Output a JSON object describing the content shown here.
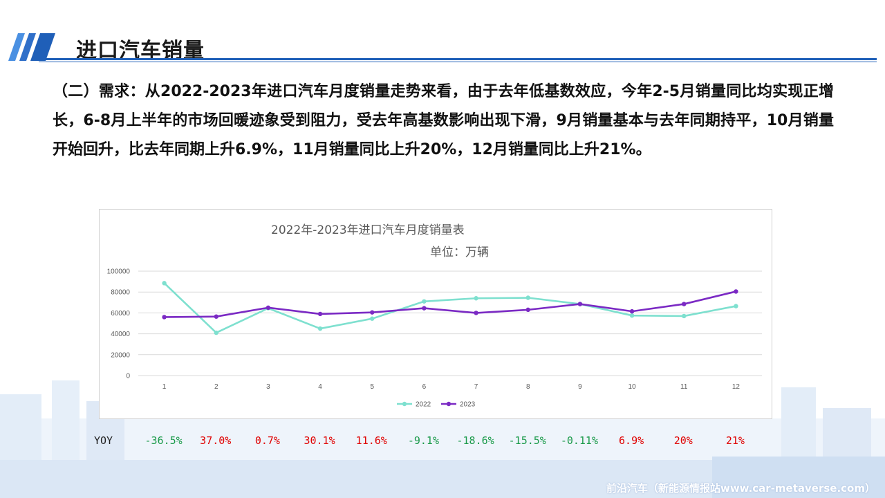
{
  "header": {
    "title": "进口汽车销量"
  },
  "paragraph": "（二）需求：从2022-2023年进口汽车月度销量走势来看，由于去年低基数效应，今年2-5月销量同比均实现正增长，6-8月上半年的市场回暖迹象受到阻力，受去年高基数影响出现下滑，9月销量基本与去年同期持平，10月销量开始回升，比去年同期上升6.9%，11月销量同比上升20%，12月销量同比上升21%。",
  "colors": {
    "series_2022": "#7ee0cf",
    "series_2023": "#7b2ac4",
    "positive": "#e00000",
    "negative": "#1a9a4a",
    "accent": "#1f5fb8"
  },
  "chart_data": {
    "type": "line",
    "title": "2022年-2023年进口汽车月度销量表",
    "subtitle": "单位：万辆",
    "x": [
      "1",
      "2",
      "3",
      "4",
      "5",
      "6",
      "7",
      "8",
      "9",
      "10",
      "11",
      "12"
    ],
    "ylim": [
      0,
      100000
    ],
    "yticks": [
      "0",
      "20000",
      "40000",
      "60000",
      "80000",
      "100000"
    ],
    "grid": true,
    "legend": "bottom",
    "series": [
      {
        "name": "2022",
        "values": [
          88500,
          41000,
          64500,
          45000,
          54500,
          71000,
          74000,
          74500,
          68500,
          57500,
          57000,
          66500
        ]
      },
      {
        "name": "2023",
        "values": [
          56000,
          56500,
          65000,
          59000,
          60500,
          64500,
          60000,
          63000,
          68500,
          61500,
          68500,
          80500
        ]
      }
    ]
  },
  "yoy": {
    "label": "YOY",
    "values": [
      "-36.5%",
      "37.0%",
      "0.7%",
      "30.1%",
      "11.6%",
      "-9.1%",
      "-18.6%",
      "-15.5%",
      "-0.11%",
      "6.9%",
      "20%",
      "21%"
    ],
    "sign": [
      "neg",
      "pos",
      "pos",
      "pos",
      "pos",
      "neg",
      "neg",
      "neg",
      "neg",
      "pos",
      "pos",
      "pos"
    ]
  },
  "watermark": "前沿汽车（新能源情报站www.car-metaverse.com）"
}
